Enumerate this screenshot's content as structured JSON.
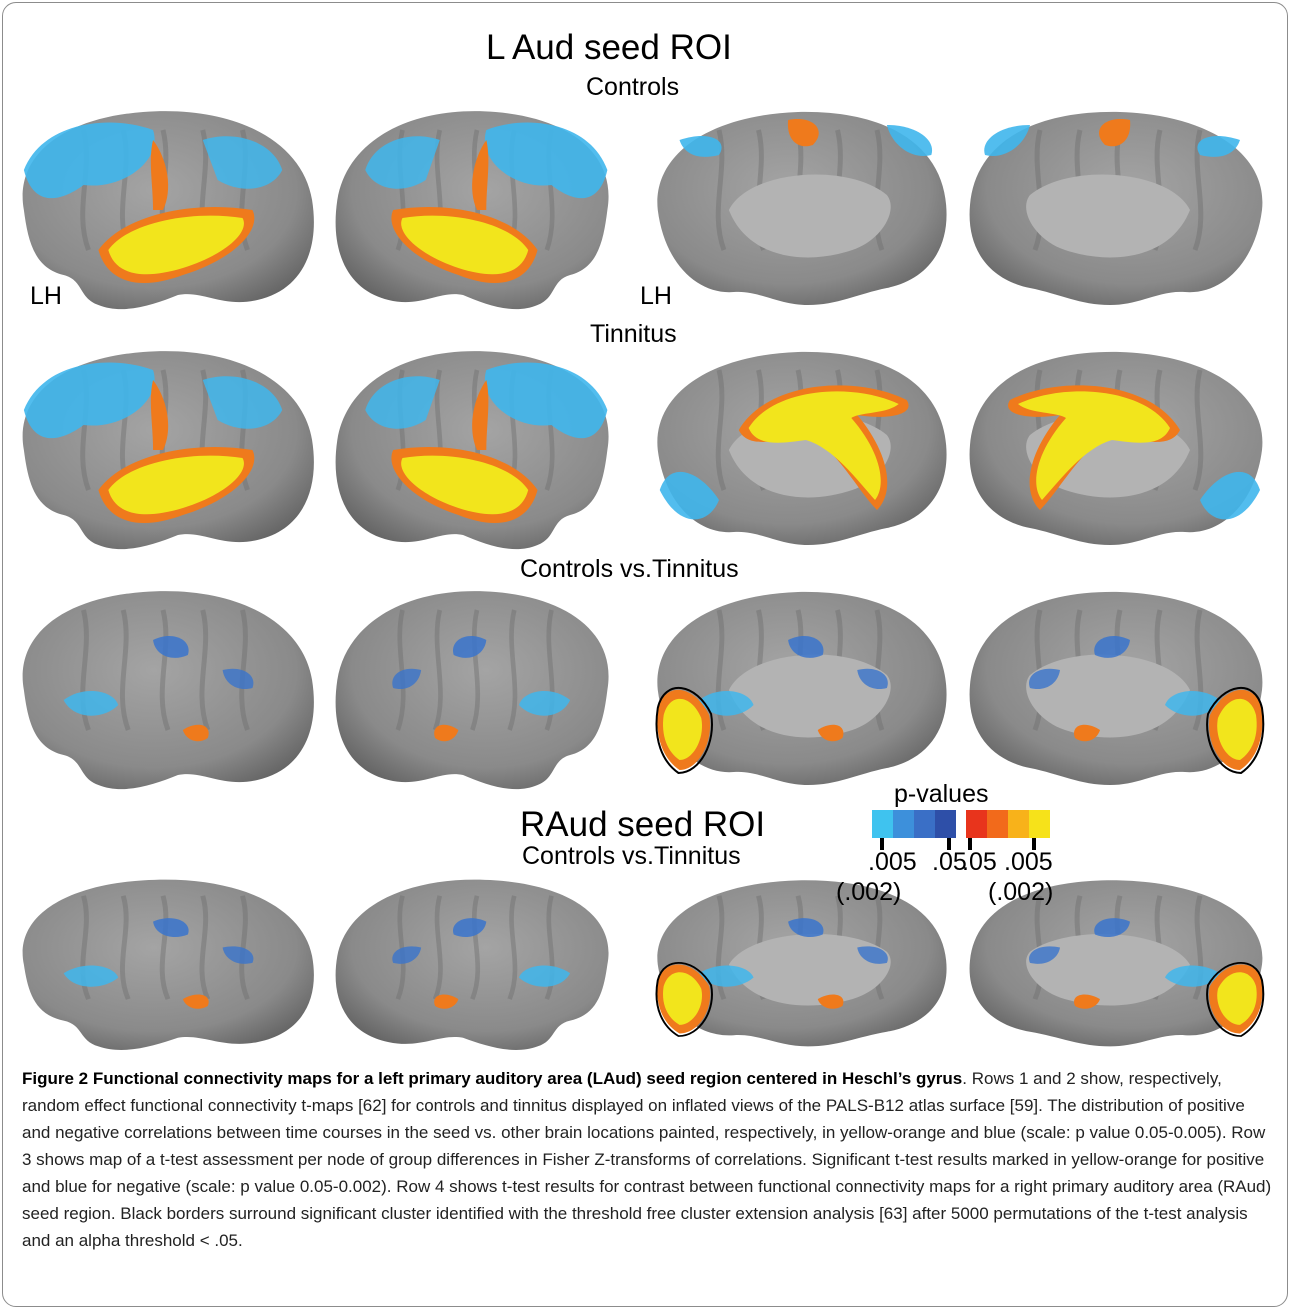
{
  "figure": {
    "titles": {
      "laud_title": "L Aud seed ROI",
      "controls": "Controls",
      "lh_left": "LH",
      "lh_right": "LH",
      "tinnitus": "Tinnitus",
      "controls_vs_tinnitus_1": "Controls vs.Tinnitus",
      "raud_title": "RAud seed ROI",
      "controls_vs_tinnitus_2": "Controls vs.Tinnitus"
    },
    "legend": {
      "title": "p-values",
      "neg_colors": [
        "#3fc3ef",
        "#3d90db",
        "#3a6fc6",
        "#2e4fa8"
      ],
      "pos_colors": [
        "#e8341c",
        "#f26a1b",
        "#f8b21a",
        "#f6e21a"
      ],
      "tick_left": ".005",
      "tick_mid_left": ".05",
      "tick_mid_right": ".05",
      "tick_right": ".005",
      "paren_left": "(.002)",
      "paren_right": "(.002)"
    },
    "colors": {
      "surface": "#8a8a8a",
      "yellow": "#f2e51c",
      "orange": "#ef7a1c",
      "blue": "#3fb6ec",
      "darkblue": "#3a74cc",
      "border": "#000000"
    }
  },
  "caption": {
    "bold": "Figure 2 Functional connectivity maps for a left primary auditory area (LAud) seed region centered in Heschl’s gyrus",
    "text": ". Rows 1 and 2 show, respectively, random effect functional connectivity t-maps [62] for controls and tinnitus displayed on inflated views of the PALS-B12 atlas surface [59]. The distribution of positive and negative correlations between time courses in the seed vs. other brain locations painted, respectively, in yellow-orange and blue (scale: p value 0.05-0.005). Row 3 shows map of a t-test assessment per node of group differences in Fisher Z-transforms of correlations. Significant t-test results marked in yellow-orange for positive and blue for negative (scale: p value 0.05-0.002). Row 4 shows t-test results for contrast between functional connectivity maps for a right primary auditory area (RAud) seed region. Black borders surround significant cluster identified with the threshold free cluster extension analysis [63] after 5000 permutations of the t-test analysis and an alpha threshold < .05."
  }
}
